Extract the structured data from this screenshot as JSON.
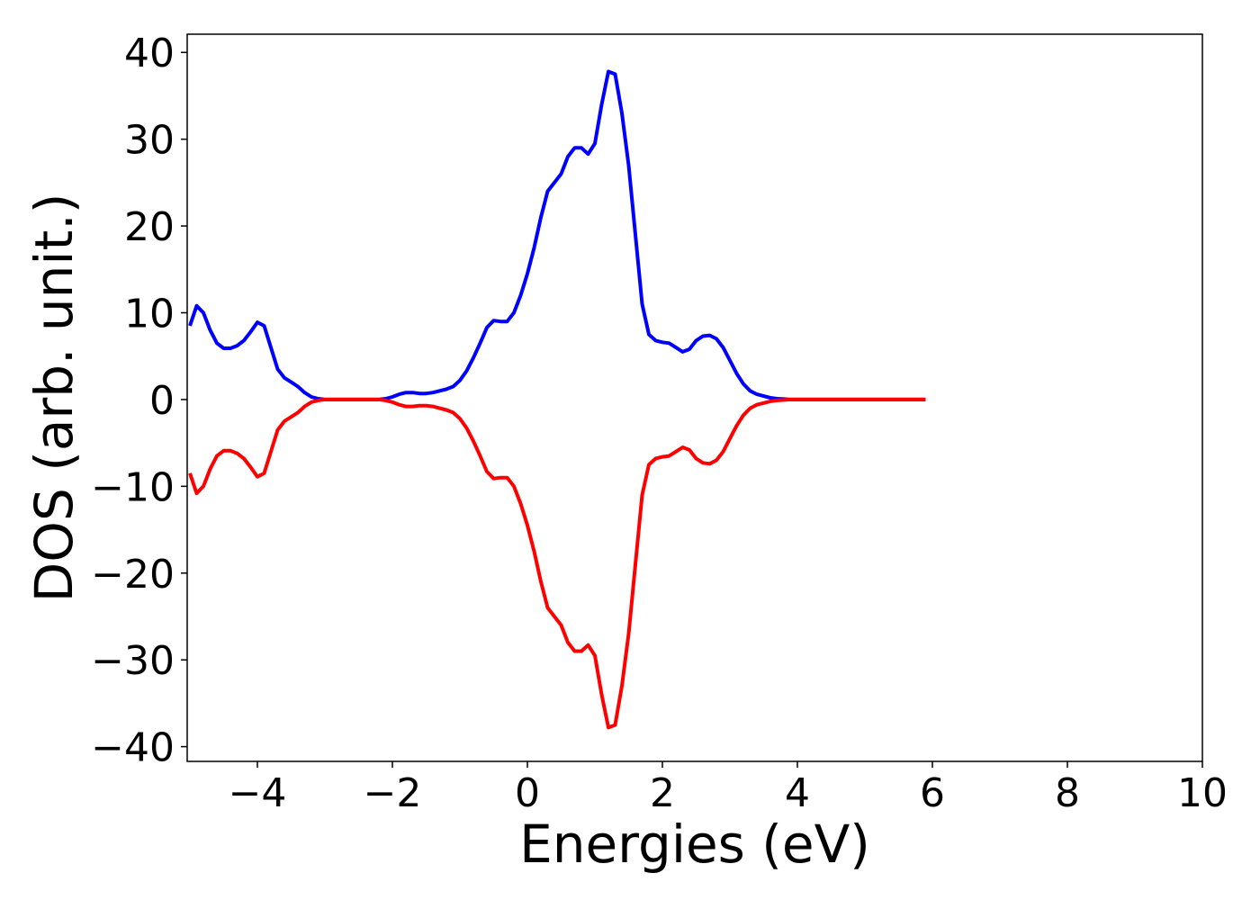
{
  "chart_data": {
    "type": "line",
    "xlabel": "Energies (eV)",
    "ylabel": "DOS (arb. unit.)",
    "x": [
      -5.0,
      -4.9,
      -4.8,
      -4.7,
      -4.6,
      -4.5,
      -4.4,
      -4.3,
      -4.2,
      -4.1,
      -4.0,
      -3.9,
      -3.8,
      -3.7,
      -3.6,
      -3.5,
      -3.4,
      -3.3,
      -3.2,
      -3.1,
      -3.0,
      -2.9,
      -2.8,
      -2.7,
      -2.6,
      -2.5,
      -2.4,
      -2.3,
      -2.2,
      -2.1,
      -2.0,
      -1.9,
      -1.8,
      -1.7,
      -1.6,
      -1.5,
      -1.4,
      -1.3,
      -1.2,
      -1.1,
      -1.0,
      -0.9,
      -0.8,
      -0.7,
      -0.6,
      -0.5,
      -0.4,
      -0.3,
      -0.2,
      -0.1,
      0.0,
      0.1,
      0.2,
      0.3,
      0.4,
      0.5,
      0.6,
      0.7,
      0.8,
      0.9,
      1.0,
      1.1,
      1.2,
      1.3,
      1.4,
      1.5,
      1.6,
      1.7,
      1.8,
      1.9,
      2.0,
      2.1,
      2.2,
      2.3,
      2.4,
      2.5,
      2.6,
      2.7,
      2.8,
      2.9,
      3.0,
      3.1,
      3.2,
      3.3,
      3.4,
      3.5,
      3.6,
      3.7,
      3.8,
      3.9,
      4.0,
      4.1,
      4.2,
      4.3,
      4.4,
      4.5,
      4.6,
      4.7,
      4.8,
      4.9,
      5.0,
      5.1,
      5.2,
      5.3,
      5.4,
      5.5,
      5.6,
      5.7,
      5.8,
      5.9
    ],
    "series": [
      {
        "color": "#0000ff",
        "values": [
          8.5,
          10.8,
          10,
          8,
          6.5,
          5.9,
          5.9,
          6.2,
          6.8,
          7.8,
          8.9,
          8.5,
          6,
          3.5,
          2.5,
          2,
          1.5,
          0.8,
          0.3,
          0.1,
          0,
          0,
          0,
          0,
          0,
          0,
          0,
          0,
          0,
          0.1,
          0.3,
          0.6,
          0.8,
          0.8,
          0.7,
          0.7,
          0.8,
          1.0,
          1.2,
          1.5,
          2.2,
          3.3,
          4.8,
          6.5,
          8.3,
          9.1,
          9.0,
          9.0,
          10,
          12,
          14.5,
          17.5,
          21,
          24,
          25,
          26,
          28,
          29,
          29,
          28.3,
          29.5,
          34,
          37.8,
          37.5,
          33,
          27,
          19,
          11,
          7.5,
          6.8,
          6.6,
          6.5,
          6,
          5.5,
          5.8,
          6.8,
          7.3,
          7.4,
          7,
          6,
          4.5,
          3,
          1.8,
          1,
          0.6,
          0.4,
          0.2,
          0.1,
          0.05,
          0,
          0,
          0,
          0,
          0,
          0,
          0,
          0,
          0,
          0,
          0,
          0,
          0,
          0,
          0,
          0,
          0,
          0,
          0,
          0,
          0
        ]
      },
      {
        "color": "#ff0000",
        "values": [
          -8.5,
          -10.8,
          -10,
          -8,
          -6.5,
          -5.9,
          -5.9,
          -6.2,
          -6.8,
          -7.8,
          -8.9,
          -8.5,
          -6,
          -3.5,
          -2.5,
          -2,
          -1.5,
          -0.8,
          -0.3,
          -0.1,
          0,
          0,
          0,
          0,
          0,
          0,
          0,
          0,
          0,
          -0.1,
          -0.3,
          -0.6,
          -0.8,
          -0.8,
          -0.7,
          -0.7,
          -0.8,
          -1.0,
          -1.2,
          -1.5,
          -2.2,
          -3.3,
          -4.8,
          -6.5,
          -8.3,
          -9.1,
          -9.0,
          -9.0,
          -10,
          -12,
          -14.5,
          -17.5,
          -21,
          -24,
          -25,
          -26,
          -28,
          -29,
          -29,
          -28.3,
          -29.5,
          -34,
          -37.8,
          -37.5,
          -33,
          -27,
          -19,
          -11,
          -7.5,
          -6.8,
          -6.6,
          -6.5,
          -6,
          -5.5,
          -5.8,
          -6.8,
          -7.3,
          -7.4,
          -7,
          -6,
          -4.5,
          -3,
          -1.8,
          -1,
          -0.6,
          -0.4,
          -0.2,
          -0.1,
          -0.05,
          0,
          0,
          0,
          0,
          0,
          0,
          0,
          0,
          0,
          0,
          0,
          0,
          0,
          0,
          0,
          0,
          0,
          0,
          0,
          0,
          0
        ]
      }
    ],
    "xlim": [
      -5.04,
      10
    ],
    "xticks": [
      {
        "value": -4,
        "label": "−4"
      },
      {
        "value": -2,
        "label": "−2"
      },
      0,
      2,
      4,
      6,
      8,
      10
    ],
    "ylim": [
      -41.7,
      42.1
    ],
    "yticks": [
      {
        "value": -40,
        "label": "−40"
      },
      {
        "value": -30,
        "label": "−30"
      },
      {
        "value": -20,
        "label": "−20"
      },
      {
        "value": -10,
        "label": "−10"
      },
      0,
      10,
      20,
      30,
      40
    ]
  }
}
